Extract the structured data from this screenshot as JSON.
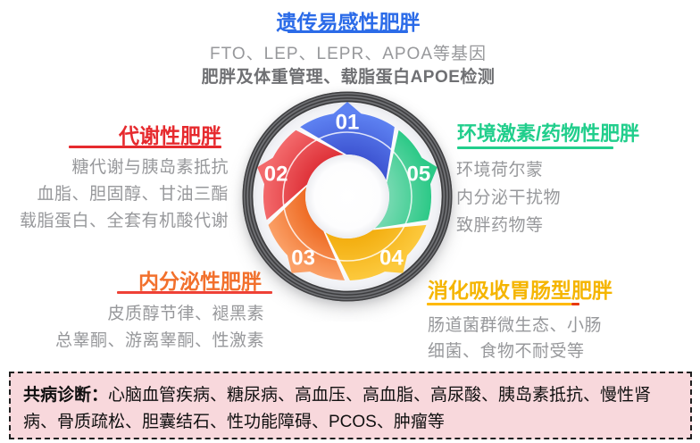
{
  "page": {
    "background": "#ffffff"
  },
  "top_section": {
    "title": "遗传易感性肥胖",
    "title_color": "#2b6be8",
    "underline_color": "#2b6be8",
    "line1": "FTO、LEP、LEPR、APOA等基因",
    "line2": "肥胖及体重管理、载脂蛋白APOE检测"
  },
  "left_section": {
    "title": "代谢性肥胖",
    "title_color": "#e62a2e",
    "underline_color": "#e62a2e",
    "lines": [
      "糖代谢与胰岛素抵抗",
      "血脂、胆固醇、甘油三酯",
      "载脂蛋白、全套有机酸代谢"
    ]
  },
  "right_section": {
    "title": "环境激素/药物性肥胖",
    "title_color": "#21ce8c",
    "underline_color": "#21ce8c",
    "lines": [
      "环境荷尔蒙",
      "内分泌干扰物",
      "致胖药物等"
    ]
  },
  "bottom_left_section": {
    "title": "内分泌性肥胖",
    "title_color": "#f2702c",
    "underline_color": "#ef4136",
    "lines": [
      "皮质醇节律、褪黑素",
      "总睾酮、游离睾酮、性激素"
    ]
  },
  "bottom_right_section": {
    "title": "消化吸收胃肠型肥胖",
    "title_color": "#f5b500",
    "underline_color": "#ffb900",
    "underline_tip_color": "#e8380d",
    "lines": [
      "肠道菌群微生态、小肠",
      "细菌、食物不耐受等"
    ]
  },
  "banner": {
    "label": "共病诊断：",
    "text": "心脑血管疾病、糖尿病、高血压、高血脂、高尿酸、胰岛素抵抗、慢性肾病、骨质疏松、胆囊结石、性功能障碍、PCOS、肿瘤等",
    "background": "#f8d8dc",
    "border_color": "#1f1f1f"
  },
  "wheel": {
    "ring_color": "#5e5f62",
    "divider_arc_color": "#ffffff",
    "segments": [
      {
        "number": "01",
        "label": "遗传易感性肥胖",
        "angle": 0,
        "color_inner": "#3e55d2",
        "color_outer": "#5e82f2"
      },
      {
        "number": "05",
        "label": "环境激素/药物性肥胖",
        "angle": 72,
        "color_inner": "#74d9b0",
        "color_outer": "#2cc987"
      },
      {
        "number": "04",
        "label": "消化吸收胃肠型肥胖",
        "angle": 144,
        "color_inner": "#f3ae10",
        "color_outer": "#fcc93d"
      },
      {
        "number": "03",
        "label": "内分泌性肥胖",
        "angle": 216,
        "color_inner": "#ee6c25",
        "color_outer": "#fba067"
      },
      {
        "number": "02",
        "label": "代谢性肥胖",
        "angle": 288,
        "color_inner": "#df333a",
        "color_outer": "#f36a6c"
      }
    ]
  }
}
